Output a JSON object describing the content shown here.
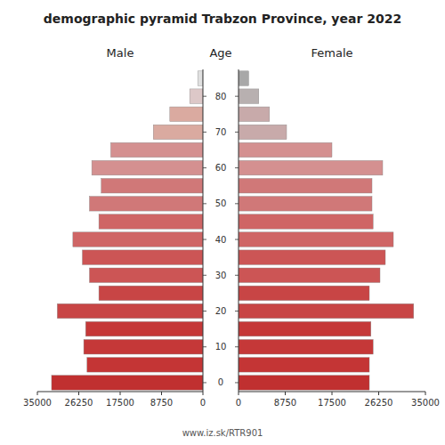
{
  "chart_data": {
    "type": "bar",
    "orientation": "horizontal",
    "title": "demographic pyramid Trabzon Province, year 2022",
    "ylabel": "Age",
    "footer": "www.iz.sk/RTR901",
    "categories": [
      "0",
      null,
      "10",
      null,
      "20",
      null,
      "30",
      null,
      "40",
      null,
      "50",
      null,
      "60",
      null,
      "70",
      null,
      "80",
      null
    ],
    "series": [
      {
        "name": "Male",
        "values": [
          32000,
          24500,
          25200,
          24800,
          30800,
          22000,
          24000,
          25500,
          27500,
          22000,
          24000,
          21500,
          23500,
          19500,
          10500,
          7000,
          2800,
          1100
        ],
        "colors": [
          "#c03030",
          "#c43535",
          "#c53838",
          "#c53838",
          "#c84545",
          "#c84545",
          "#cc5555",
          "#cc5555",
          "#cf6565",
          "#cf6565",
          "#d07878",
          "#d07878",
          "#d49090",
          "#d49090",
          "#daaaa0",
          "#daaaa0",
          "#ddc8c8",
          "#e0e0e0"
        ]
      },
      {
        "name": "Female",
        "values": [
          24500,
          24500,
          25200,
          24800,
          32800,
          24500,
          26500,
          27500,
          29000,
          25200,
          25000,
          25000,
          27000,
          17500,
          9000,
          5800,
          3800,
          1900
        ],
        "colors": [
          "#c03030",
          "#c43535",
          "#c53838",
          "#c53838",
          "#c84545",
          "#c84545",
          "#cc5555",
          "#cc5555",
          "#cf6565",
          "#cf6565",
          "#d07878",
          "#d07878",
          "#d49090",
          "#d49090",
          "#c8aaaa",
          "#c8aaaa",
          "#b8b0b0",
          "#a8a8a8"
        ]
      }
    ],
    "xlim": [
      0,
      35000
    ],
    "xticks": [
      0,
      8750,
      17500,
      26250,
      35000
    ],
    "grid": false
  }
}
